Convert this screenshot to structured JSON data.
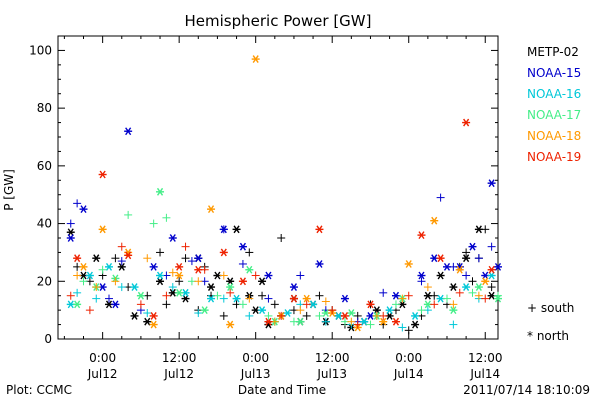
{
  "chart_data": {
    "type": "scatter",
    "title": "Hemispheric Power [GW]",
    "ylabel": "P [GW]",
    "xlabel": "Date and Time",
    "ylim": [
      0,
      105
    ],
    "xlim": [
      -7,
      62
    ],
    "x_units": "hours since 2011-07-12 00:00 UT",
    "yticks": [
      0,
      20,
      40,
      60,
      80,
      100
    ],
    "xticks": [
      {
        "x": 0,
        "line1": "0:00",
        "line2": "Jul12"
      },
      {
        "x": 12,
        "line1": "12:00",
        "line2": "Jul12"
      },
      {
        "x": 24,
        "line1": "0:00",
        "line2": "Jul13"
      },
      {
        "x": 36,
        "line1": "12:00",
        "line2": "Jul13"
      },
      {
        "x": 48,
        "line1": "0:00",
        "line2": "Jul14"
      },
      {
        "x": 60,
        "line1": "12:00",
        "line2": "Jul14"
      }
    ],
    "footer_left": "Plot: CCMC",
    "footer_right": "2011/07/14 18:10:09",
    "symbol_legend": [
      {
        "symbol": "+",
        "label": "south"
      },
      {
        "symbol": "*",
        "label": "north"
      }
    ],
    "series": [
      {
        "name": "METP-02",
        "color": "#000000",
        "south": [
          [
            -4,
            25
          ],
          [
            -2,
            20
          ],
          [
            0,
            22
          ],
          [
            2,
            28
          ],
          [
            4,
            18
          ],
          [
            7,
            15
          ],
          [
            9,
            30
          ],
          [
            10,
            12
          ],
          [
            12,
            20
          ],
          [
            13,
            28
          ],
          [
            15,
            10
          ],
          [
            16,
            25
          ],
          [
            17,
            15
          ],
          [
            19,
            8
          ],
          [
            21,
            12
          ],
          [
            23,
            30
          ],
          [
            25,
            15
          ],
          [
            27,
            12
          ],
          [
            28,
            35
          ],
          [
            30,
            10
          ],
          [
            32,
            8
          ],
          [
            34,
            15
          ],
          [
            36,
            10
          ],
          [
            38,
            5
          ],
          [
            40,
            8
          ],
          [
            42,
            12
          ],
          [
            44,
            5
          ],
          [
            46,
            10
          ],
          [
            48,
            3
          ],
          [
            50,
            8
          ],
          [
            52,
            15
          ],
          [
            54,
            12
          ],
          [
            56,
            25
          ],
          [
            57,
            30
          ],
          [
            58,
            20
          ],
          [
            59,
            28
          ],
          [
            60,
            38
          ],
          [
            61,
            18
          ]
        ],
        "north": [
          [
            -5,
            37
          ],
          [
            -3,
            22
          ],
          [
            -1,
            28
          ],
          [
            1,
            12
          ],
          [
            3,
            25
          ],
          [
            5,
            8
          ],
          [
            7,
            6
          ],
          [
            9,
            20
          ],
          [
            11,
            16
          ],
          [
            13,
            14
          ],
          [
            15,
            28
          ],
          [
            17,
            18
          ],
          [
            18,
            22
          ],
          [
            20,
            20
          ],
          [
            21,
            38
          ],
          [
            23,
            15
          ],
          [
            24,
            10
          ],
          [
            25,
            20
          ],
          [
            26,
            5
          ],
          [
            28,
            8
          ],
          [
            30,
            14
          ],
          [
            31,
            6
          ],
          [
            33,
            12
          ],
          [
            35,
            6
          ],
          [
            37,
            8
          ],
          [
            39,
            4
          ],
          [
            41,
            6
          ],
          [
            43,
            10
          ],
          [
            45,
            8
          ],
          [
            47,
            12
          ],
          [
            49,
            5
          ],
          [
            51,
            15
          ],
          [
            53,
            22
          ],
          [
            55,
            18
          ],
          [
            57,
            28
          ],
          [
            59,
            38
          ],
          [
            61,
            15
          ]
        ]
      },
      {
        "name": "NOAA-15",
        "color": "#0000cc",
        "south": [
          [
            -5,
            40
          ],
          [
            -4,
            47
          ],
          [
            1,
            14
          ],
          [
            3,
            27
          ],
          [
            6,
            10
          ],
          [
            10,
            22
          ],
          [
            14,
            27
          ],
          [
            16,
            20
          ],
          [
            19,
            38
          ],
          [
            22,
            26
          ],
          [
            26,
            14
          ],
          [
            31,
            22
          ],
          [
            35,
            10
          ],
          [
            40,
            6
          ],
          [
            44,
            16
          ],
          [
            50,
            20
          ],
          [
            53,
            49
          ],
          [
            55,
            25
          ],
          [
            57,
            22
          ],
          [
            59,
            28
          ],
          [
            61,
            32
          ]
        ],
        "north": [
          [
            -5,
            35
          ],
          [
            -3,
            45
          ],
          [
            0,
            18
          ],
          [
            2,
            12
          ],
          [
            4,
            72
          ],
          [
            8,
            25
          ],
          [
            11,
            35
          ],
          [
            15,
            28
          ],
          [
            19,
            38
          ],
          [
            22,
            32
          ],
          [
            26,
            22
          ],
          [
            30,
            18
          ],
          [
            34,
            26
          ],
          [
            38,
            14
          ],
          [
            42,
            8
          ],
          [
            46,
            15
          ],
          [
            50,
            22
          ],
          [
            52,
            28
          ],
          [
            54,
            25
          ],
          [
            56,
            25
          ],
          [
            58,
            32
          ],
          [
            60,
            22
          ],
          [
            61,
            54
          ],
          [
            62,
            25
          ]
        ]
      },
      {
        "name": "NOAA-16",
        "color": "#00c8d8",
        "south": [
          [
            -4,
            16
          ],
          [
            -1,
            14
          ],
          [
            3,
            18
          ],
          [
            7,
            9
          ],
          [
            11,
            18
          ],
          [
            15,
            9
          ],
          [
            19,
            14
          ],
          [
            23,
            8
          ],
          [
            27,
            6
          ],
          [
            31,
            12
          ],
          [
            35,
            6
          ],
          [
            39,
            5
          ],
          [
            43,
            8
          ],
          [
            47,
            4
          ],
          [
            51,
            10
          ],
          [
            55,
            5
          ],
          [
            59,
            14
          ]
        ],
        "north": [
          [
            -5,
            12
          ],
          [
            -2,
            22
          ],
          [
            1,
            25
          ],
          [
            5,
            18
          ],
          [
            9,
            22
          ],
          [
            13,
            16
          ],
          [
            17,
            14
          ],
          [
            21,
            14
          ],
          [
            25,
            10
          ],
          [
            29,
            9
          ],
          [
            33,
            12
          ],
          [
            37,
            8
          ],
          [
            41,
            6
          ],
          [
            45,
            10
          ],
          [
            49,
            8
          ],
          [
            53,
            14
          ],
          [
            57,
            18
          ],
          [
            61,
            22
          ]
        ]
      },
      {
        "name": "NOAA-17",
        "color": "#44ee88",
        "south": [
          [
            -3,
            20
          ],
          [
            0,
            24
          ],
          [
            4,
            43
          ],
          [
            8,
            40
          ],
          [
            10,
            42
          ],
          [
            14,
            20
          ],
          [
            18,
            15
          ],
          [
            22,
            12
          ],
          [
            26,
            8
          ],
          [
            30,
            6
          ],
          [
            34,
            8
          ],
          [
            38,
            6
          ],
          [
            42,
            5
          ],
          [
            46,
            12
          ],
          [
            50,
            10
          ],
          [
            54,
            14
          ],
          [
            58,
            16
          ],
          [
            62,
            15
          ]
        ],
        "north": [
          [
            -4,
            12
          ],
          [
            -1,
            18
          ],
          [
            2,
            21
          ],
          [
            6,
            15
          ],
          [
            9,
            51
          ],
          [
            12,
            16
          ],
          [
            16,
            10
          ],
          [
            20,
            18
          ],
          [
            23,
            24
          ],
          [
            27,
            6
          ],
          [
            31,
            6
          ],
          [
            35,
            9
          ],
          [
            39,
            9
          ],
          [
            43,
            8
          ],
          [
            47,
            14
          ],
          [
            51,
            12
          ],
          [
            55,
            10
          ],
          [
            59,
            18
          ],
          [
            62,
            14
          ]
        ]
      },
      {
        "name": "NOAA-18",
        "color": "#ff9900",
        "south": [
          [
            -4,
            22
          ],
          [
            -1,
            18
          ],
          [
            2,
            20
          ],
          [
            7,
            28
          ],
          [
            11,
            23
          ],
          [
            15,
            20
          ],
          [
            19,
            22
          ],
          [
            23,
            14
          ],
          [
            27,
            6
          ],
          [
            31,
            10
          ],
          [
            35,
            13
          ],
          [
            39,
            6
          ],
          [
            43,
            8
          ],
          [
            47,
            14
          ],
          [
            51,
            18
          ],
          [
            55,
            12
          ],
          [
            59,
            15
          ]
        ],
        "north": [
          [
            -3,
            25
          ],
          [
            0,
            38
          ],
          [
            4,
            30
          ],
          [
            8,
            5
          ],
          [
            12,
            22
          ],
          [
            17,
            45
          ],
          [
            20,
            5
          ],
          [
            24,
            97
          ],
          [
            28,
            8
          ],
          [
            32,
            14
          ],
          [
            36,
            9
          ],
          [
            40,
            4
          ],
          [
            44,
            6
          ],
          [
            48,
            26
          ],
          [
            52,
            41
          ],
          [
            56,
            24
          ],
          [
            60,
            20
          ]
        ]
      },
      {
        "name": "NOAA-19",
        "color": "#ee2200",
        "south": [
          [
            -5,
            15
          ],
          [
            -2,
            10
          ],
          [
            3,
            32
          ],
          [
            6,
            12
          ],
          [
            10,
            15
          ],
          [
            13,
            32
          ],
          [
            16,
            24
          ],
          [
            20,
            16
          ],
          [
            24,
            22
          ],
          [
            28,
            8
          ],
          [
            32,
            12
          ],
          [
            36,
            10
          ],
          [
            40,
            5
          ],
          [
            44,
            8
          ],
          [
            48,
            15
          ],
          [
            52,
            12
          ],
          [
            56,
            16
          ],
          [
            60,
            14
          ]
        ],
        "north": [
          [
            -4,
            28
          ],
          [
            0,
            57
          ],
          [
            4,
            29
          ],
          [
            8,
            8
          ],
          [
            12,
            25
          ],
          [
            15,
            24
          ],
          [
            19,
            30
          ],
          [
            22,
            20
          ],
          [
            26,
            6
          ],
          [
            30,
            14
          ],
          [
            34,
            38
          ],
          [
            38,
            8
          ],
          [
            42,
            12
          ],
          [
            46,
            6
          ],
          [
            50,
            36
          ],
          [
            53,
            28
          ],
          [
            57,
            75
          ],
          [
            61,
            24
          ]
        ]
      }
    ]
  }
}
